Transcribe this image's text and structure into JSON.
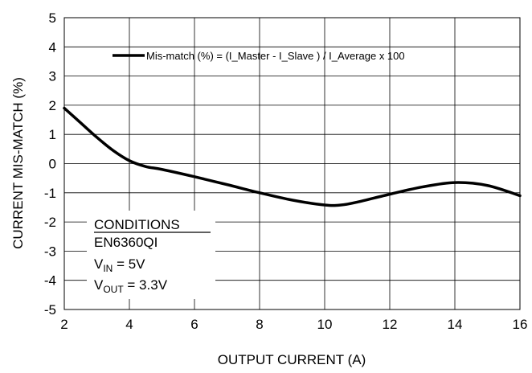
{
  "chart_data": {
    "type": "line",
    "xlabel": "OUTPUT CURRENT (A)",
    "ylabel": "CURRENT MIS-MATCH (%)",
    "xlim": [
      2,
      16
    ],
    "ylim": [
      -5,
      5
    ],
    "x_ticks": [
      "2",
      "4",
      "6",
      "8",
      "10",
      "12",
      "14",
      "16"
    ],
    "y_ticks": [
      "5",
      "4",
      "3",
      "2",
      "1",
      "0",
      "-1",
      "-2",
      "-3",
      "-4",
      "-5"
    ],
    "grid": true,
    "legend_position": "top-right",
    "series": [
      {
        "name": "Mis-match (%) = (I_Master - I_Slave ) / I_Average x 100",
        "color": "#000000",
        "x": [
          2,
          2.5,
          3,
          3.5,
          4,
          4.5,
          5,
          6,
          7,
          8,
          9,
          10,
          10.5,
          11,
          12,
          13,
          14,
          15,
          16
        ],
        "y": [
          1.9,
          1.4,
          0.9,
          0.45,
          0.1,
          -0.1,
          -0.2,
          -0.45,
          -0.72,
          -1.0,
          -1.25,
          -1.42,
          -1.42,
          -1.32,
          -1.05,
          -0.8,
          -0.65,
          -0.75,
          -1.1
        ]
      }
    ]
  },
  "conditions": {
    "heading": "CONDITIONS",
    "device": "EN6360QI",
    "vin_main": "V",
    "vin_sub": "IN",
    "vin_value": " = 5V",
    "vout_main": "V",
    "vout_sub": "OUT",
    "vout_value": " = 3.3V"
  },
  "colors": {
    "line": "#000000",
    "grid": "#000000",
    "background": "#ffffff"
  }
}
